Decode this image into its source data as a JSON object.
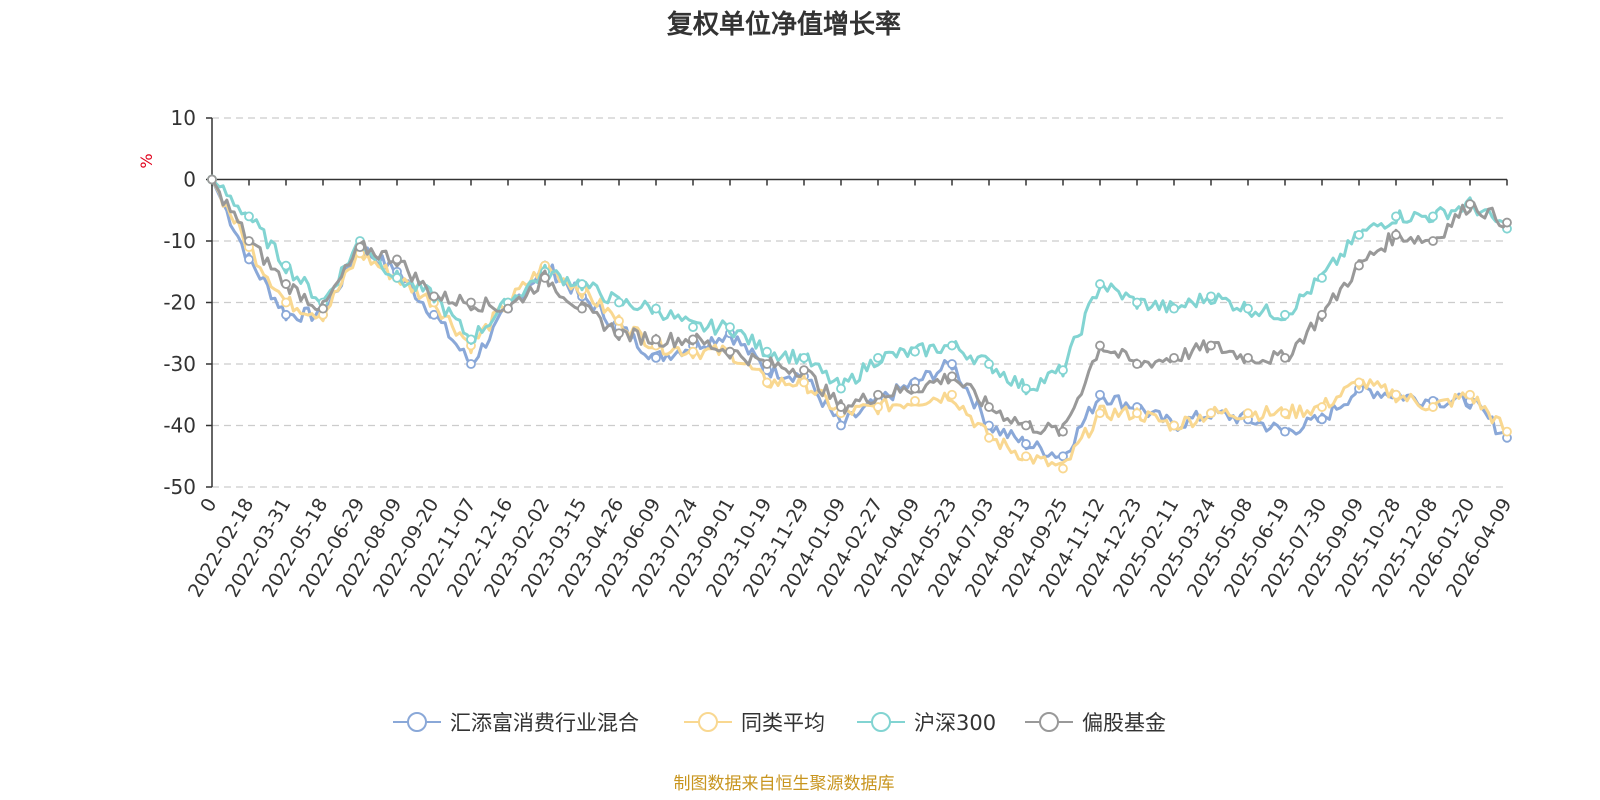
{
  "chart_data": {
    "type": "line",
    "title": "复权单位净值增长率",
    "ylabel": "%",
    "ylim": [
      -50,
      10
    ],
    "yticks": [
      10,
      0,
      -10,
      -20,
      -30,
      -40,
      -50
    ],
    "grid": true,
    "legend_position": "bottom",
    "categories": [
      "0",
      "2022-02-18",
      "2022-03-31",
      "2022-05-18",
      "2022-06-29",
      "2022-08-09",
      "2022-09-20",
      "2022-11-07",
      "2022-12-16",
      "2023-02-02",
      "2023-03-15",
      "2023-04-26",
      "2023-06-09",
      "2023-07-24",
      "2023-09-01",
      "2023-10-19",
      "2023-11-29",
      "2024-01-09",
      "2024-02-27",
      "2024-04-09",
      "2024-05-23",
      "2024-07-03",
      "2024-08-13",
      "2024-09-25",
      "2024-11-12",
      "2024-12-23",
      "2025-02-11",
      "2025-03-24",
      "2025-05-08",
      "2025-06-19",
      "2025-07-30",
      "2025-09-09",
      "2025-10-28",
      "2025-12-08",
      "2026-01-20",
      "2026-04-09"
    ],
    "series": [
      {
        "name": "汇添富消费行业混合",
        "color": "#8aa8d8",
        "values": [
          0,
          -13,
          -22,
          -22,
          -11,
          -15,
          -22,
          -30,
          -21,
          -14,
          -19,
          -24,
          -29,
          -27,
          -25,
          -31,
          -32,
          -40,
          -36,
          -33,
          -30,
          -40,
          -43,
          -45,
          -35,
          -37,
          -40,
          -38,
          -39,
          -41,
          -39,
          -34,
          -35,
          -36,
          -36,
          -42
        ]
      },
      {
        "name": "同类平均",
        "color": "#f9d891",
        "values": [
          0,
          -11,
          -20,
          -22,
          -12,
          -16,
          -20,
          -27,
          -20,
          -14,
          -18,
          -23,
          -27,
          -28,
          -28,
          -33,
          -33,
          -38,
          -37,
          -36,
          -35,
          -42,
          -45,
          -47,
          -38,
          -38,
          -40,
          -38,
          -38,
          -38,
          -37,
          -33,
          -35,
          -37,
          -35,
          -41
        ]
      },
      {
        "name": "沪深300",
        "color": "#82d4d2",
        "values": [
          0,
          -6,
          -14,
          -20,
          -10,
          -16,
          -19,
          -26,
          -20,
          -15,
          -17,
          -20,
          -21,
          -24,
          -24,
          -28,
          -29,
          -34,
          -29,
          -28,
          -27,
          -30,
          -34,
          -31,
          -17,
          -20,
          -21,
          -19,
          -21,
          -22,
          -16,
          -9,
          -6,
          -6,
          -4,
          -8
        ]
      },
      {
        "name": "偏股基金",
        "color": "#999999",
        "values": [
          0,
          -10,
          -17,
          -21,
          -11,
          -13,
          -19,
          -20,
          -21,
          -16,
          -21,
          -25,
          -26,
          -26,
          -28,
          -30,
          -31,
          -37,
          -35,
          -34,
          -32,
          -37,
          -40,
          -41,
          -27,
          -30,
          -29,
          -27,
          -29,
          -29,
          -22,
          -14,
          -9,
          -10,
          -4,
          -7
        ]
      }
    ]
  },
  "legend_marker_symbol": "circle",
  "source_note": "制图数据来自恒生聚源数据库"
}
